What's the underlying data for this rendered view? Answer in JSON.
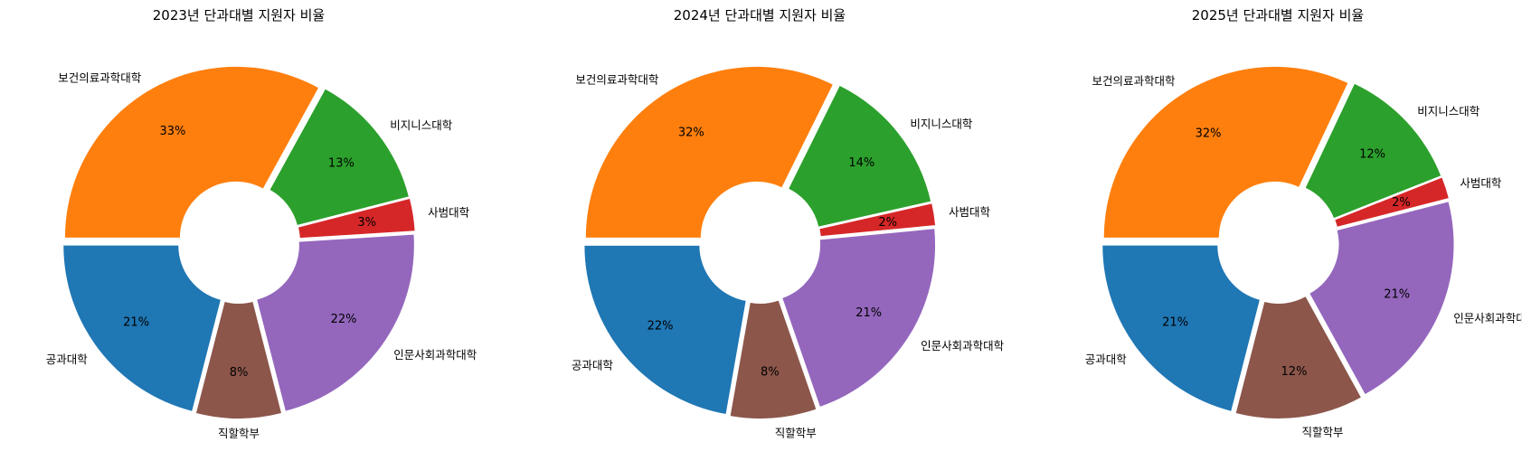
{
  "chart_data": [
    {
      "type": "pie",
      "title": "2023년 단과대별 지원자 비율",
      "categories": [
        "공과대학",
        "직할학부",
        "인문사회과학대학",
        "사범대학",
        "비지니스대학",
        "보건의료과학대학"
      ],
      "values": [
        21,
        8,
        22,
        3,
        13,
        33
      ],
      "value_labels": [
        "21%",
        "8%",
        "22%",
        "3%",
        "13%",
        "33%"
      ],
      "colors": [
        "#1f77b4",
        "#8c564b",
        "#9467bd",
        "#d62728",
        "#2ca02c",
        "#ff7f0e"
      ]
    },
    {
      "type": "pie",
      "title": "2024년 단과대별 지원자 비율",
      "categories": [
        "공과대학",
        "직할학부",
        "인문사회과학대학",
        "사범대학",
        "비지니스대학",
        "보건의료과학대학"
      ],
      "values": [
        22,
        8,
        21,
        2,
        14,
        32
      ],
      "value_labels": [
        "22%",
        "8%",
        "21%",
        "2%",
        "14%",
        "32%"
      ],
      "colors": [
        "#1f77b4",
        "#8c564b",
        "#9467bd",
        "#d62728",
        "#2ca02c",
        "#ff7f0e"
      ]
    },
    {
      "type": "pie",
      "title": "2025년 단과대별 지원자 비율",
      "categories": [
        "공과대학",
        "직할학부",
        "인문사회과학대학",
        "사범대학",
        "비지니스대학",
        "보건의료과학대학"
      ],
      "values": [
        21,
        12,
        21,
        2,
        12,
        32
      ],
      "value_labels": [
        "21%",
        "12%",
        "21%",
        "2%",
        "12%",
        "32%"
      ],
      "colors": [
        "#1f77b4",
        "#8c564b",
        "#9467bd",
        "#d62728",
        "#2ca02c",
        "#ff7f0e"
      ]
    }
  ]
}
